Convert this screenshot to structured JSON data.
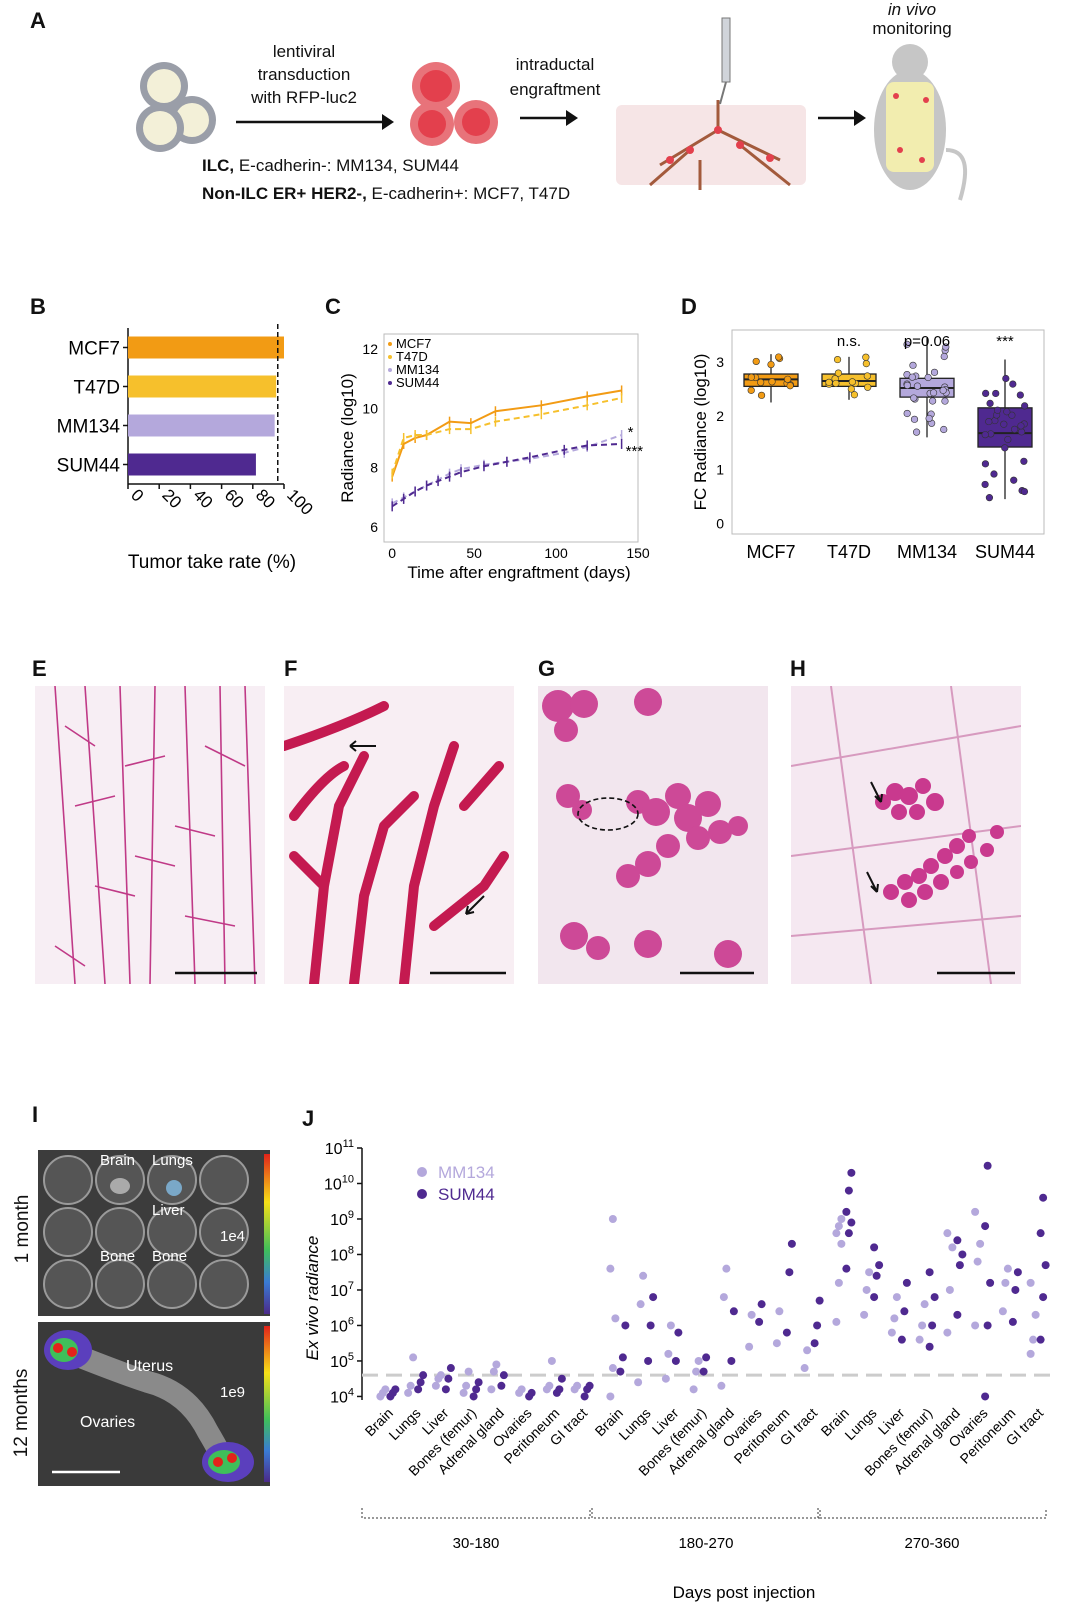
{
  "panel_labels": {
    "a": "A",
    "b": "B",
    "c": "C",
    "d": "D",
    "e": "E",
    "f": "F",
    "g": "G",
    "h": "H",
    "i": "I",
    "j": "J"
  },
  "panel_a": {
    "step1": [
      "lentiviral",
      "transduction",
      "with RFP-luc2"
    ],
    "step2": [
      "intraductal",
      "engraftment"
    ],
    "monitor_em": "in vivo",
    "monitor": "monitoring",
    "line1_bold": "ILC,",
    "line1_rest": " E-cadherin-: MM134, SUM44",
    "line2_bold": "Non-ILC ER+ HER2-,",
    "line2_rest": " E-cadherin+: MCF7, T47D"
  },
  "colors": {
    "mcf7": "#f29b14",
    "t47d": "#f6c02c",
    "mm134": "#b4a8dc",
    "sum44": "#4f2990",
    "grid": "#cccccc"
  },
  "chart_data": [
    {
      "panel": "B",
      "type": "bar",
      "orientation": "horizontal",
      "categories": [
        "MCF7",
        "T47D",
        "MM134",
        "SUM44"
      ],
      "values": [
        100,
        95,
        94,
        82
      ],
      "xlabel": "Tumor take rate (%)",
      "xticks": [
        "0",
        "20",
        "40",
        "60",
        "80",
        "100"
      ],
      "xlim": [
        0,
        100
      ],
      "reference_line": 96
    },
    {
      "panel": "C",
      "type": "line",
      "xlabel": "Time after engraftment (days)",
      "ylabel": "Radiance (log10)",
      "xlim": [
        -5,
        150
      ],
      "ylim": [
        5.5,
        12.5
      ],
      "xticks": [
        "0",
        "50",
        "100",
        "150"
      ],
      "yticks": [
        "6",
        "8",
        "10",
        "12"
      ],
      "series": [
        {
          "name": "MCF7",
          "style": "solid",
          "x": [
            0,
            7,
            14,
            21,
            35,
            48,
            63,
            91,
            119,
            140
          ],
          "y": [
            7.7,
            8.8,
            9.0,
            9.1,
            9.55,
            9.5,
            9.9,
            10.1,
            10.4,
            10.6
          ]
        },
        {
          "name": "T47D",
          "style": "dashed",
          "x": [
            0,
            7,
            14,
            21,
            35,
            48,
            63,
            91,
            119,
            140
          ],
          "y": [
            7.8,
            9.0,
            9.1,
            9.1,
            9.3,
            9.3,
            9.55,
            9.8,
            10.1,
            10.35
          ]
        },
        {
          "name": "MM134",
          "style": "dashed",
          "x": [
            0,
            7,
            14,
            21,
            28,
            35,
            42,
            56,
            70,
            84,
            105,
            119,
            140
          ],
          "y": [
            6.8,
            7.0,
            7.2,
            7.4,
            7.6,
            7.8,
            7.95,
            8.1,
            8.2,
            8.3,
            8.5,
            8.7,
            9.1
          ]
        },
        {
          "name": "SUM44",
          "style": "dashed",
          "x": [
            0,
            7,
            14,
            21,
            28,
            35,
            42,
            56,
            70,
            84,
            105,
            119,
            140
          ],
          "y": [
            6.7,
            6.95,
            7.2,
            7.4,
            7.55,
            7.7,
            7.85,
            8.05,
            8.2,
            8.35,
            8.6,
            8.75,
            8.8
          ]
        }
      ],
      "annotations": [
        "*",
        "***"
      ]
    },
    {
      "panel": "D",
      "type": "box",
      "ylabel": "FC Radiance (log10)",
      "categories": [
        "MCF7",
        "T47D",
        "MM134",
        "SUM44"
      ],
      "ylim": [
        -0.2,
        3.6
      ],
      "yticks": [
        "0",
        "1",
        "2",
        "3"
      ],
      "annotations": [
        "",
        "n.s.",
        "p=0.06",
        "***"
      ],
      "boxes": [
        {
          "q1": 2.55,
          "median": 2.68,
          "q3": 2.78,
          "min": 2.25,
          "max": 3.15
        },
        {
          "q1": 2.55,
          "median": 2.65,
          "q3": 2.78,
          "min": 2.3,
          "max": 3.1
        },
        {
          "q1": 2.35,
          "median": 2.52,
          "q3": 2.7,
          "min": 1.6,
          "max": 3.45
        },
        {
          "q1": 1.42,
          "median": 1.68,
          "q3": 2.15,
          "min": 0.45,
          "max": 3.05
        }
      ]
    },
    {
      "panel": "J",
      "type": "scatter",
      "ylabel": "Ex vivo radiance",
      "xlabel": "Days post injection",
      "ylim_log10": [
        3.9,
        11
      ],
      "yticks_exp": [
        "4",
        "5",
        "6",
        "7",
        "8",
        "9",
        "10",
        "11"
      ],
      "threshold_log10": 4.6,
      "series_names": [
        "MM134",
        "SUM44"
      ],
      "tissues": [
        "Brain",
        "Lungs",
        "Liver",
        "Bones (femur)",
        "Adrenal gland",
        "Ovaries",
        "Peritoneum",
        "GI tract"
      ],
      "groups": [
        {
          "label": "30-180",
          "MM134": [
            [
              4.0,
              4.1,
              4.2
            ],
            [
              4.1,
              4.3,
              5.1
            ],
            [
              4.3,
              4.5,
              4.6
            ],
            [
              4.1,
              4.3,
              4.7
            ],
            [
              4.2,
              4.7,
              4.9
            ],
            [
              4.1,
              4.2
            ],
            [
              4.2,
              4.3,
              5.0
            ],
            [
              4.2,
              4.3
            ]
          ],
          "SUM44": [
            [
              4.0,
              4.1,
              4.2
            ],
            [
              4.2,
              4.4,
              4.6
            ],
            [
              4.2,
              4.5,
              4.8
            ],
            [
              4.0,
              4.2,
              4.4
            ],
            [
              4.3,
              4.6
            ],
            [
              4.0,
              4.1
            ],
            [
              4.1,
              4.2,
              4.5
            ],
            [
              4.0,
              4.2,
              4.3
            ]
          ]
        },
        {
          "label": "180-270",
          "MM134": [
            [
              4.0,
              4.8,
              6.2,
              7.6,
              9.0
            ],
            [
              4.4,
              6.6,
              7.4
            ],
            [
              4.5,
              5.2,
              6.0
            ],
            [
              4.2,
              4.7,
              5.0
            ],
            [
              4.3,
              6.8,
              7.6
            ],
            [
              5.4,
              6.3
            ],
            [
              5.5,
              6.4
            ],
            [
              4.8,
              5.3
            ]
          ],
          "SUM44": [
            [
              4.7,
              5.1,
              6.0
            ],
            [
              5.0,
              6.0,
              6.8
            ],
            [
              5.0,
              5.8
            ],
            [
              4.7,
              5.1
            ],
            [
              5.0,
              6.4
            ],
            [
              6.1,
              6.6
            ],
            [
              5.8,
              7.5,
              8.3
            ],
            [
              5.5,
              6.0,
              6.7
            ]
          ]
        },
        {
          "label": "270-360",
          "MM134": [
            [
              6.1,
              7.2,
              8.3,
              8.6,
              8.8,
              9.0
            ],
            [
              6.3,
              7.0,
              7.5
            ],
            [
              5.8,
              6.2,
              6.8
            ],
            [
              5.6,
              6.0,
              6.6
            ],
            [
              5.8,
              7.0,
              8.2,
              8.6
            ],
            [
              6.0,
              7.8,
              8.3,
              9.2
            ],
            [
              6.4,
              7.2,
              7.6
            ],
            [
              5.2,
              5.6,
              6.3,
              7.2
            ]
          ],
          "SUM44": [
            [
              7.6,
              8.6,
              8.9,
              9.2,
              9.8,
              10.3
            ],
            [
              6.8,
              7.4,
              7.7,
              8.2
            ],
            [
              5.6,
              6.4,
              7.2
            ],
            [
              5.4,
              6.0,
              6.8,
              7.5
            ],
            [
              6.3,
              7.7,
              8.0,
              8.4
            ],
            [
              4.0,
              6.0,
              7.2,
              8.8,
              10.5
            ],
            [
              6.1,
              7.0,
              7.5
            ],
            [
              5.6,
              6.8,
              7.7,
              8.6,
              9.6
            ]
          ]
        }
      ]
    }
  ],
  "panel_i": {
    "tissues_1m": [
      "Brain",
      "Lungs",
      "Liver",
      "Bone",
      "Bone"
    ],
    "scale_1m": "1e4",
    "tissues_12m": [
      "Uterus",
      "Ovaries"
    ],
    "scale_12m": "1e9",
    "row1": "1 month",
    "row2": "12 months"
  }
}
